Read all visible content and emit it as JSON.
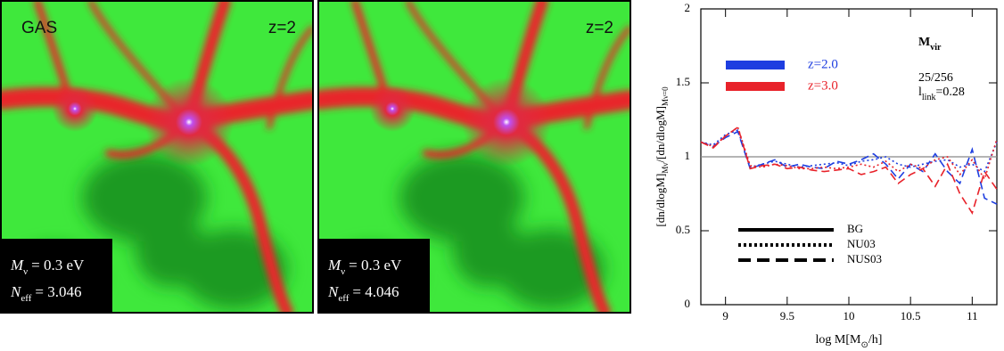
{
  "panels": [
    {
      "tag": "GAS",
      "redshift": "z=2",
      "lines": [
        {
          "symbol": "M",
          "sub": "ν",
          "value": "= 0.3 eV"
        },
        {
          "symbol": "N",
          "sub": "eff",
          "value": "= 3.046"
        }
      ]
    },
    {
      "redshift": "z=2",
      "lines": [
        {
          "symbol": "M",
          "sub": "ν",
          "value": "= 0.3 eV"
        },
        {
          "symbol": "N",
          "sub": "eff",
          "value": "= 4.046"
        }
      ]
    }
  ],
  "chart_data": {
    "type": "line",
    "xlabel": [
      {
        "text": "log M[M"
      },
      {
        "sub": "⊙"
      },
      {
        "text": "/h]"
      }
    ],
    "ylabel": [
      {
        "text": "[dn/dlogM]"
      },
      {
        "sub": "Mν"
      },
      {
        "text": "/[dn/dlogM]"
      },
      {
        "sub": "Mν=0"
      }
    ],
    "xlim": [
      8.8,
      11.2
    ],
    "xticks": [
      9,
      9.5,
      10,
      10.5,
      11
    ],
    "ylim": [
      0,
      2
    ],
    "yticks": [
      0,
      0.5,
      1,
      1.5,
      2
    ],
    "hline": 1,
    "annotations": [
      [
        {
          "text": "M"
        },
        {
          "sub": "vir"
        }
      ],
      [
        {
          "text": "25/256"
        }
      ],
      [
        {
          "text": "l"
        },
        {
          "sub": "link"
        },
        {
          "text": "=0.28"
        }
      ]
    ],
    "color_legend": [
      {
        "name": "z=2.0",
        "color": "#1e3ee0"
      },
      {
        "name": "z=3.0",
        "color": "#e8222a"
      }
    ],
    "style_legend": [
      {
        "name": "BG",
        "dash": "solid"
      },
      {
        "name": "NU03",
        "dash": "dotted"
      },
      {
        "name": "NUS03",
        "dash": "dashed"
      }
    ],
    "x": [
      8.8,
      8.9,
      9.0,
      9.1,
      9.2,
      9.3,
      9.4,
      9.5,
      9.6,
      9.7,
      9.8,
      9.9,
      10.0,
      10.1,
      10.2,
      10.3,
      10.4,
      10.5,
      10.6,
      10.7,
      10.8,
      10.9,
      11.0,
      11.1,
      11.2
    ],
    "series": [
      {
        "color": "#1e3ee0",
        "dash": "dotted",
        "values": [
          1.1,
          1.08,
          1.15,
          1.18,
          0.93,
          0.95,
          0.97,
          0.95,
          0.93,
          0.94,
          0.95,
          0.96,
          0.94,
          0.97,
          0.98,
          1.0,
          0.95,
          0.93,
          0.95,
          0.97,
          0.98,
          0.93,
          0.95,
          0.9,
          1.1
        ]
      },
      {
        "color": "#1e3ee0",
        "dash": "dashed",
        "values": [
          1.1,
          1.07,
          1.13,
          1.17,
          0.92,
          0.95,
          0.98,
          0.93,
          0.95,
          0.93,
          0.92,
          0.97,
          0.95,
          0.98,
          1.02,
          0.95,
          0.85,
          0.95,
          0.9,
          1.02,
          0.9,
          0.82,
          1.05,
          0.72,
          0.68
        ]
      },
      {
        "color": "#e8222a",
        "dash": "dotted",
        "values": [
          1.1,
          1.07,
          1.14,
          1.2,
          0.94,
          0.93,
          0.95,
          0.94,
          0.92,
          0.92,
          0.93,
          0.92,
          0.93,
          0.95,
          0.93,
          0.97,
          0.9,
          0.95,
          0.92,
          0.98,
          1.0,
          0.88,
          0.98,
          0.85,
          1.12
        ]
      },
      {
        "color": "#e8222a",
        "dash": "dashed",
        "values": [
          1.1,
          1.06,
          1.14,
          1.2,
          0.92,
          0.94,
          0.95,
          0.92,
          0.93,
          0.91,
          0.9,
          0.91,
          0.92,
          0.88,
          0.9,
          0.93,
          0.82,
          0.88,
          0.92,
          0.8,
          0.95,
          0.75,
          0.62,
          0.9,
          0.78
        ]
      }
    ]
  }
}
